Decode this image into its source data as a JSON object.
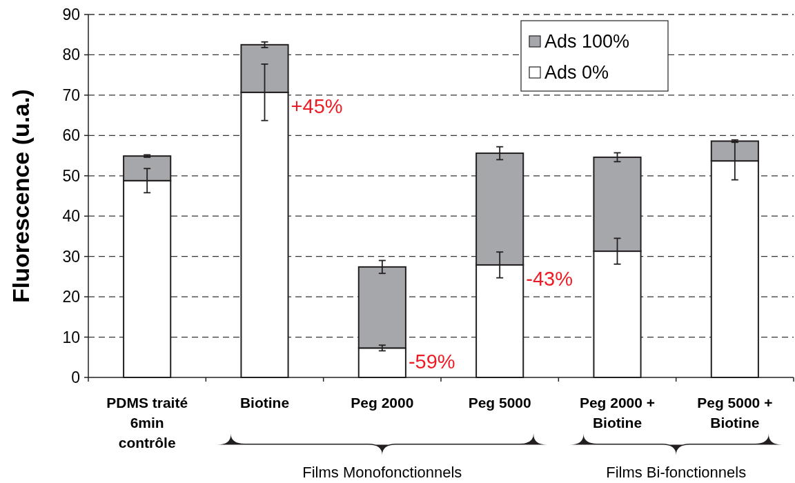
{
  "chart_data": {
    "type": "bar",
    "stacked": true,
    "ylabel": "Fluorescence (u.a.)",
    "categories": [
      "PDMS traité\n6min\ncontrôle",
      "Biotine",
      "Peg 2000",
      "Peg 5000",
      "Peg 2000 +\nBiotine",
      "Peg 5000 +\nBiotine"
    ],
    "series": [
      {
        "name": "Ads 0%",
        "color": "#ffffff",
        "values": [
          48.8,
          70.7,
          7.3,
          27.9,
          31.3,
          53.7
        ],
        "errors": [
          3,
          7,
          0.7,
          3.2,
          3.2,
          4.7
        ]
      },
      {
        "name": "Ads 100%",
        "color": "#a6a7ab",
        "values": [
          6.1,
          11.8,
          20.1,
          27.7,
          23.3,
          4.9
        ],
        "errors": [
          0.3,
          0.7,
          1.6,
          1.6,
          1.1,
          0.3
        ]
      }
    ],
    "ylim": [
      0,
      90
    ],
    "yticks": [
      0,
      10,
      20,
      30,
      40,
      50,
      60,
      70,
      80,
      90
    ],
    "grid": "y",
    "legend": "top right",
    "annotations": [
      {
        "text": "+45%",
        "x": "Biotine",
        "y": 70.7
      },
      {
        "text": "-59%",
        "x": "Peg 2000",
        "y": 7.3
      },
      {
        "text": "-43%",
        "x": "Peg 5000",
        "y": 27.9
      },
      "Films Monofonctionnels",
      "Films Bi-fonctionnels"
    ]
  }
}
